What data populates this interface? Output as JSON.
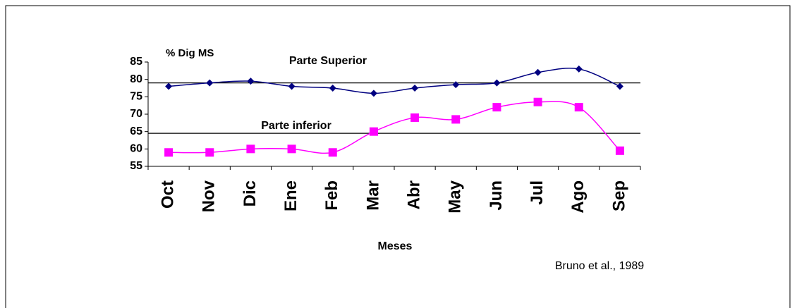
{
  "chart_data": {
    "type": "line",
    "y_label": "% Dig MS",
    "x_label": "Meses",
    "source": "Bruno et al., 1989",
    "categories": [
      "Oct",
      "Nov",
      "Dic",
      "Ene",
      "Feb",
      "Mar",
      "Abr",
      "May",
      "Jun",
      "Jul",
      "Ago",
      "Sep"
    ],
    "series": [
      {
        "name": "Parte Superior",
        "color": "#000080",
        "marker": "diamond",
        "values": [
          78,
          79,
          79.5,
          78,
          77.5,
          76,
          77.5,
          78.5,
          79,
          82,
          83,
          78
        ]
      },
      {
        "name": "Parte inferior",
        "color": "#ff00ff",
        "marker": "square",
        "values": [
          59,
          59,
          60,
          60,
          59,
          65,
          69,
          68.5,
          72,
          73.5,
          72,
          59.5
        ]
      }
    ],
    "reference_lines": [
      79,
      64.5
    ],
    "ylim": [
      55,
      85
    ],
    "yticks": [
      55,
      60,
      65,
      70,
      75,
      80,
      85
    ]
  }
}
